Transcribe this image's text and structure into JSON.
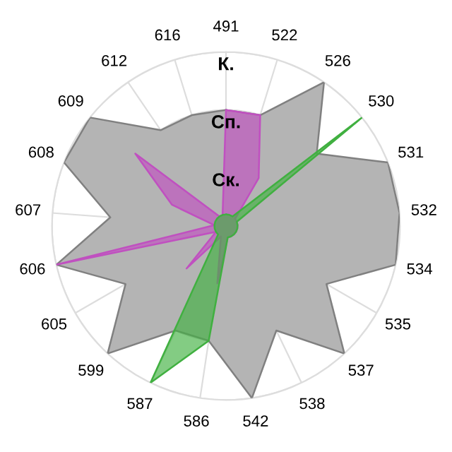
{
  "chart_data": {
    "type": "radar",
    "categories": [
      "491",
      "522",
      "526",
      "530",
      "531",
      "532",
      "534",
      "535",
      "537",
      "538",
      "542",
      "586",
      "587",
      "599",
      "605",
      "606",
      "607",
      "608",
      "609",
      "612",
      "616"
    ],
    "series": [
      {
        "color": "#b4b4b4",
        "values": [
          2,
          2,
          3,
          2,
          3,
          3,
          3,
          2,
          3,
          2,
          3,
          2,
          2,
          3,
          2,
          3,
          2,
          3,
          3,
          2,
          2
        ]
      },
      {
        "color": "#c050c0",
        "values": [
          2,
          2,
          1,
          0.2,
          0.2,
          0.2,
          0.2,
          0.2,
          0.2,
          0.2,
          0.2,
          1,
          0.2,
          1,
          0.2,
          3,
          0.2,
          1,
          2,
          0.2,
          0.2
        ]
      },
      {
        "color": "#40b040",
        "values": [
          0.2,
          0.2,
          0.2,
          3,
          0.2,
          0.2,
          0.2,
          0.2,
          0.2,
          0.2,
          0.2,
          2,
          3,
          0.2,
          0.2,
          0.2,
          0.2,
          0.2,
          0.2,
          0.2,
          0.2
        ]
      }
    ],
    "ylim": [
      0,
      3
    ],
    "yticks": [
      {
        "value": 1,
        "label": "Ск."
      },
      {
        "value": 2,
        "label": "Сп."
      },
      {
        "value": 3,
        "label": "К."
      }
    ],
    "grid": true,
    "marker": "none"
  }
}
